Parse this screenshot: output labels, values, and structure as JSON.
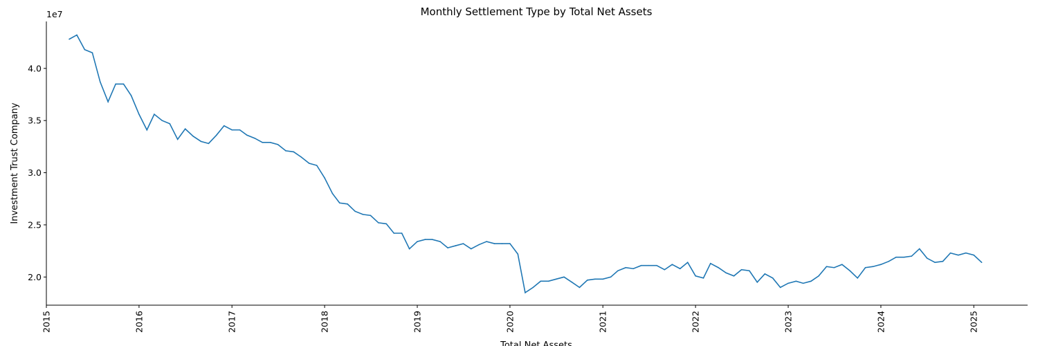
{
  "chart_data": {
    "type": "line",
    "title": "Monthly Settlement Type by Total Net Assets",
    "xlabel": "Total Net Assets",
    "ylabel": "Investment Trust Company",
    "y_offset_label": "1e7",
    "y_scale": 10000000,
    "xlim": [
      "2015-01-01",
      "2025-08-01"
    ],
    "ylim": [
      1.73,
      4.45
    ],
    "yticks": [
      2.0,
      2.5,
      3.0,
      3.5,
      4.0
    ],
    "ytick_labels": [
      "2.0",
      "2.5",
      "3.0",
      "3.5",
      "4.0"
    ],
    "xticks": [
      "2015-01-01",
      "2016-01-01",
      "2017-01-01",
      "2018-01-01",
      "2019-01-01",
      "2020-01-01",
      "2021-01-01",
      "2022-01-01",
      "2023-01-01",
      "2024-01-01",
      "2025-01-01"
    ],
    "xtick_labels": [
      "2015",
      "2016",
      "2017",
      "2018",
      "2019",
      "2020",
      "2021",
      "2022",
      "2023",
      "2024",
      "2025"
    ],
    "grid": false,
    "color": "#1f77b4",
    "series": [
      {
        "x": [
          "2015-04-01",
          "2015-05-01",
          "2015-06-01",
          "2015-07-01",
          "2015-08-01",
          "2015-09-01",
          "2015-10-01",
          "2015-11-01",
          "2015-12-01",
          "2016-01-01",
          "2016-02-01",
          "2016-03-01",
          "2016-04-01",
          "2016-05-01",
          "2016-06-01",
          "2016-07-01",
          "2016-08-01",
          "2016-09-01",
          "2016-10-01",
          "2016-11-01",
          "2016-12-01",
          "2017-01-01",
          "2017-02-01",
          "2017-03-01",
          "2017-04-01",
          "2017-05-01",
          "2017-06-01",
          "2017-07-01",
          "2017-08-01",
          "2017-09-01",
          "2017-10-01",
          "2017-11-01",
          "2017-12-01",
          "2018-01-01",
          "2018-02-01",
          "2018-03-01",
          "2018-04-01",
          "2018-05-01",
          "2018-06-01",
          "2018-07-01",
          "2018-08-01",
          "2018-09-01",
          "2018-10-01",
          "2018-11-01",
          "2018-12-01",
          "2019-01-01",
          "2019-02-01",
          "2019-03-01",
          "2019-04-01",
          "2019-05-01",
          "2019-06-01",
          "2019-07-01",
          "2019-08-01",
          "2019-09-01",
          "2019-10-01",
          "2019-11-01",
          "2019-12-01",
          "2020-01-01",
          "2020-02-01",
          "2020-03-01",
          "2020-04-01",
          "2020-05-01",
          "2020-06-01",
          "2020-07-01",
          "2020-08-01",
          "2020-09-01",
          "2020-10-01",
          "2020-11-01",
          "2020-12-01",
          "2021-01-01",
          "2021-02-01",
          "2021-03-01",
          "2021-04-01",
          "2021-05-01",
          "2021-06-01",
          "2021-07-01",
          "2021-08-01",
          "2021-09-01",
          "2021-10-01",
          "2021-11-01",
          "2021-12-01",
          "2022-01-01",
          "2022-02-01",
          "2022-03-01",
          "2022-04-01",
          "2022-05-01",
          "2022-06-01",
          "2022-07-01",
          "2022-08-01",
          "2022-09-01",
          "2022-10-01",
          "2022-11-01",
          "2022-12-01",
          "2023-01-01",
          "2023-02-01",
          "2023-03-01",
          "2023-04-01",
          "2023-05-01",
          "2023-06-01",
          "2023-07-01",
          "2023-08-01",
          "2023-09-01",
          "2023-10-01",
          "2023-11-01",
          "2023-12-01",
          "2024-01-01",
          "2024-02-01",
          "2024-03-01",
          "2024-04-01",
          "2024-05-01",
          "2024-06-01",
          "2024-07-01",
          "2024-08-01",
          "2024-09-01",
          "2024-10-01",
          "2024-11-01",
          "2024-12-01",
          "2025-01-01",
          "2025-02-01"
        ],
        "values": [
          4.28,
          4.32,
          4.18,
          4.15,
          3.87,
          3.68,
          3.85,
          3.85,
          3.74,
          3.56,
          3.41,
          3.56,
          3.5,
          3.47,
          3.32,
          3.42,
          3.35,
          3.3,
          3.28,
          3.36,
          3.45,
          3.41,
          3.41,
          3.36,
          3.33,
          3.29,
          3.29,
          3.27,
          3.21,
          3.2,
          3.15,
          3.09,
          3.07,
          2.95,
          2.8,
          2.71,
          2.7,
          2.63,
          2.6,
          2.59,
          2.52,
          2.51,
          2.42,
          2.42,
          2.27,
          2.34,
          2.36,
          2.36,
          2.34,
          2.28,
          2.3,
          2.32,
          2.27,
          2.31,
          2.34,
          2.32,
          2.32,
          2.32,
          2.22,
          1.85,
          1.9,
          1.96,
          1.96,
          1.98,
          2.0,
          1.95,
          1.9,
          1.97,
          1.98,
          1.98,
          2.0,
          2.06,
          2.09,
          2.08,
          2.11,
          2.11,
          2.11,
          2.07,
          2.12,
          2.08,
          2.14,
          2.01,
          1.99,
          2.13,
          2.09,
          2.04,
          2.01,
          2.07,
          2.06,
          1.95,
          2.03,
          1.99,
          1.9,
          1.94,
          1.96,
          1.94,
          1.96,
          2.01,
          2.1,
          2.09,
          2.12,
          2.06,
          1.99,
          2.09,
          2.1,
          2.12,
          2.15,
          2.19,
          2.19,
          2.2,
          2.27,
          2.18,
          2.14,
          2.15,
          2.23,
          2.21,
          2.23,
          2.21,
          2.14
        ]
      }
    ]
  }
}
